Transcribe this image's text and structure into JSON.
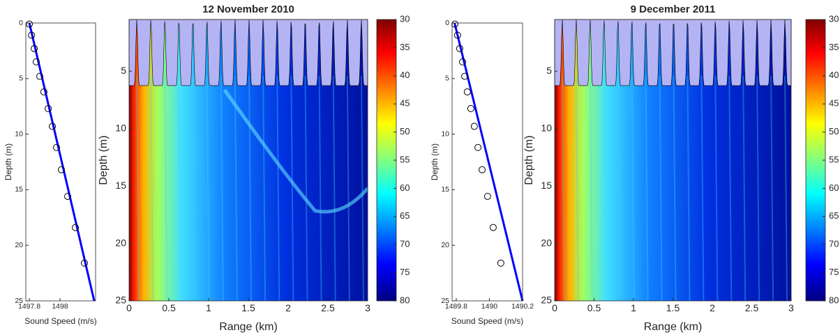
{
  "chart_data": [
    {
      "type": "line",
      "xlabel": "Sound Speed (m/s)",
      "ylabel": "Depth (m)",
      "xlim": [
        1497.777,
        1498.232
      ],
      "ylim": [
        0,
        25
      ],
      "y_reversed": true,
      "xticks": [
        1497.8,
        1498
      ],
      "yticks": [
        0,
        5,
        10,
        15,
        20,
        25
      ],
      "series": [
        {
          "color": "#0000ff",
          "x": [
            1497.8,
            1498.223
          ],
          "values": [
            0,
            25
          ]
        }
      ],
      "markers": {
        "color": "#000000",
        "x": [
          1497.8,
          1497.814,
          1497.832,
          1497.845,
          1497.868,
          1497.895,
          1497.923,
          1497.95,
          1497.977,
          1498.009,
          1498.05,
          1498.1,
          1498.159
        ],
        "values": [
          0.1,
          1.1,
          2.3,
          3.5,
          4.8,
          6.2,
          7.7,
          9.3,
          11.2,
          13.2,
          15.6,
          18.4,
          21.6
        ]
      }
    },
    {
      "type": "heatmap",
      "title": "12 November 2010",
      "xlabel": "Range (km)",
      "ylabel": "Depth (m)",
      "xlim": [
        0,
        3
      ],
      "ylim": [
        0.5,
        25
      ],
      "y_reversed": true,
      "xticks": [
        0,
        0.5,
        1,
        1.5,
        2,
        2.5,
        3
      ],
      "yticks": [
        5,
        10,
        15,
        20,
        25
      ],
      "colormap": "jet",
      "clim": [
        30,
        80
      ],
      "cticks": [
        30,
        35,
        40,
        45,
        50,
        55,
        60,
        65,
        70,
        75,
        80
      ]
    },
    {
      "type": "line",
      "xlabel": "Sound Speed (m/s)",
      "ylabel": "Depth (m)",
      "xlim": [
        1489.775,
        1490.2
      ],
      "ylim": [
        0,
        25
      ],
      "y_reversed": true,
      "xticks": [
        1489.8,
        1490,
        1490.2
      ],
      "yticks": [
        0,
        5,
        10,
        15,
        20,
        25
      ],
      "series": [
        {
          "color": "#0000ff",
          "x": [
            1489.79,
            1490.2
          ],
          "values": [
            0,
            25
          ]
        }
      ],
      "markers": {
        "color": "#000000",
        "x": [
          1489.792,
          1489.808,
          1489.821,
          1489.838,
          1489.851,
          1489.867,
          1489.888,
          1489.909,
          1489.931,
          1489.956,
          1489.989,
          1490.023,
          1490.069
        ],
        "values": [
          0.1,
          1.1,
          2.3,
          3.5,
          4.8,
          6.2,
          7.7,
          9.3,
          11.2,
          13.2,
          15.6,
          18.4,
          21.6
        ]
      }
    },
    {
      "type": "heatmap",
      "title": "9 December 2011",
      "xlabel": "Range (km)",
      "ylabel": "Depth (m)",
      "xlim": [
        0,
        3
      ],
      "ylim": [
        0.5,
        25
      ],
      "y_reversed": true,
      "xticks": [
        0,
        0.5,
        1,
        1.5,
        2,
        2.5,
        3
      ],
      "yticks": [
        5,
        10,
        15,
        20,
        25
      ],
      "colormap": "jet",
      "clim": [
        30,
        80
      ],
      "cticks": [
        30,
        35,
        40,
        45,
        50,
        55,
        60,
        65,
        70,
        75,
        80
      ]
    }
  ]
}
